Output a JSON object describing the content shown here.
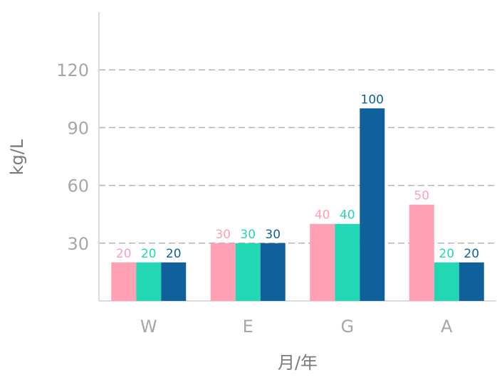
{
  "chart_data": {
    "type": "bar",
    "title": "",
    "xlabel": "月/年",
    "ylabel": "kg/L",
    "categories": [
      "W",
      "E",
      "G",
      "A"
    ],
    "series": [
      {
        "values": [
          20,
          30,
          40,
          50
        ],
        "color": "#ffa0b4"
      },
      {
        "values": [
          20,
          30,
          40,
          20
        ],
        "color": "#22d7b4"
      },
      {
        "values": [
          20,
          30,
          100,
          20
        ],
        "color": "#10619b"
      }
    ],
    "ylim": [
      0,
      150
    ],
    "yticks": [
      30,
      60,
      90,
      120
    ],
    "grid": "horizontal-dashed",
    "data_labels": true,
    "legend": "none"
  }
}
